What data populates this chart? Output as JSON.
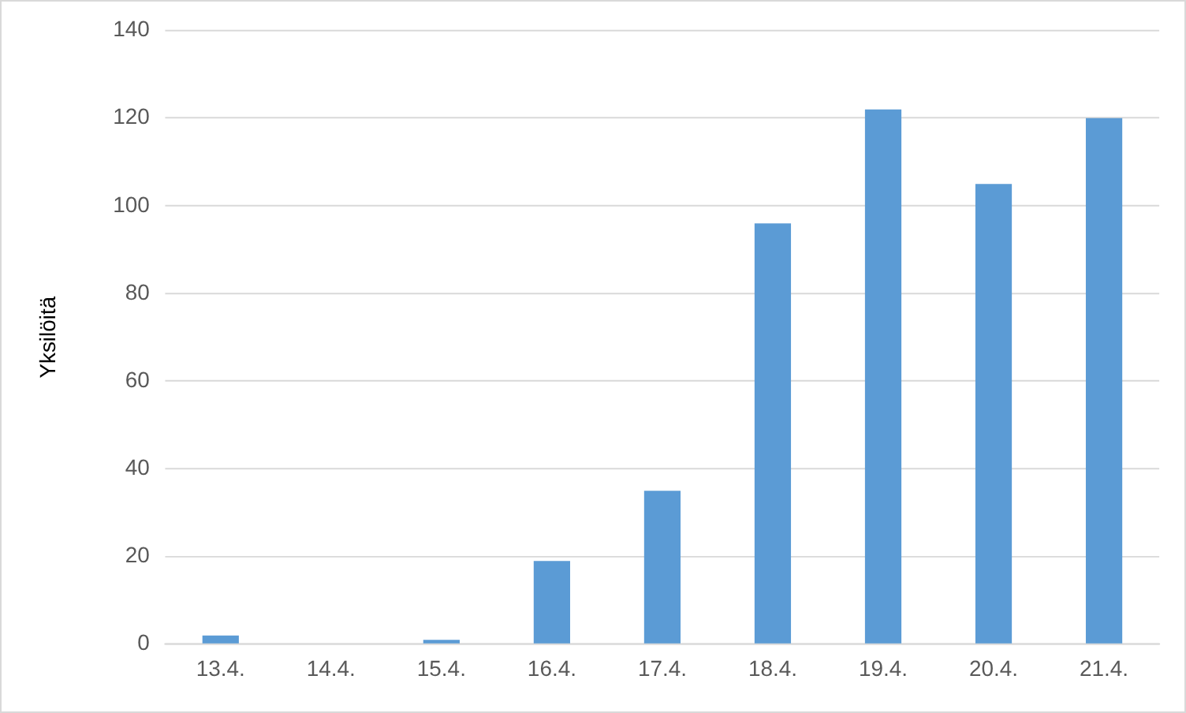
{
  "chart_data": {
    "type": "bar",
    "ylabel": "Yksilöitä",
    "categories": [
      "13.4.",
      "14.4.",
      "15.4.",
      "16.4.",
      "17.4.",
      "18.4.",
      "19.4.",
      "20.4.",
      "21.4."
    ],
    "values": [
      2,
      0,
      1,
      19,
      35,
      96,
      122,
      105,
      120
    ],
    "color": "#5b9bd5",
    "ylim": [
      0,
      140
    ],
    "yticks": [
      0,
      20,
      40,
      60,
      80,
      100,
      120,
      140
    ],
    "grid": "y"
  }
}
